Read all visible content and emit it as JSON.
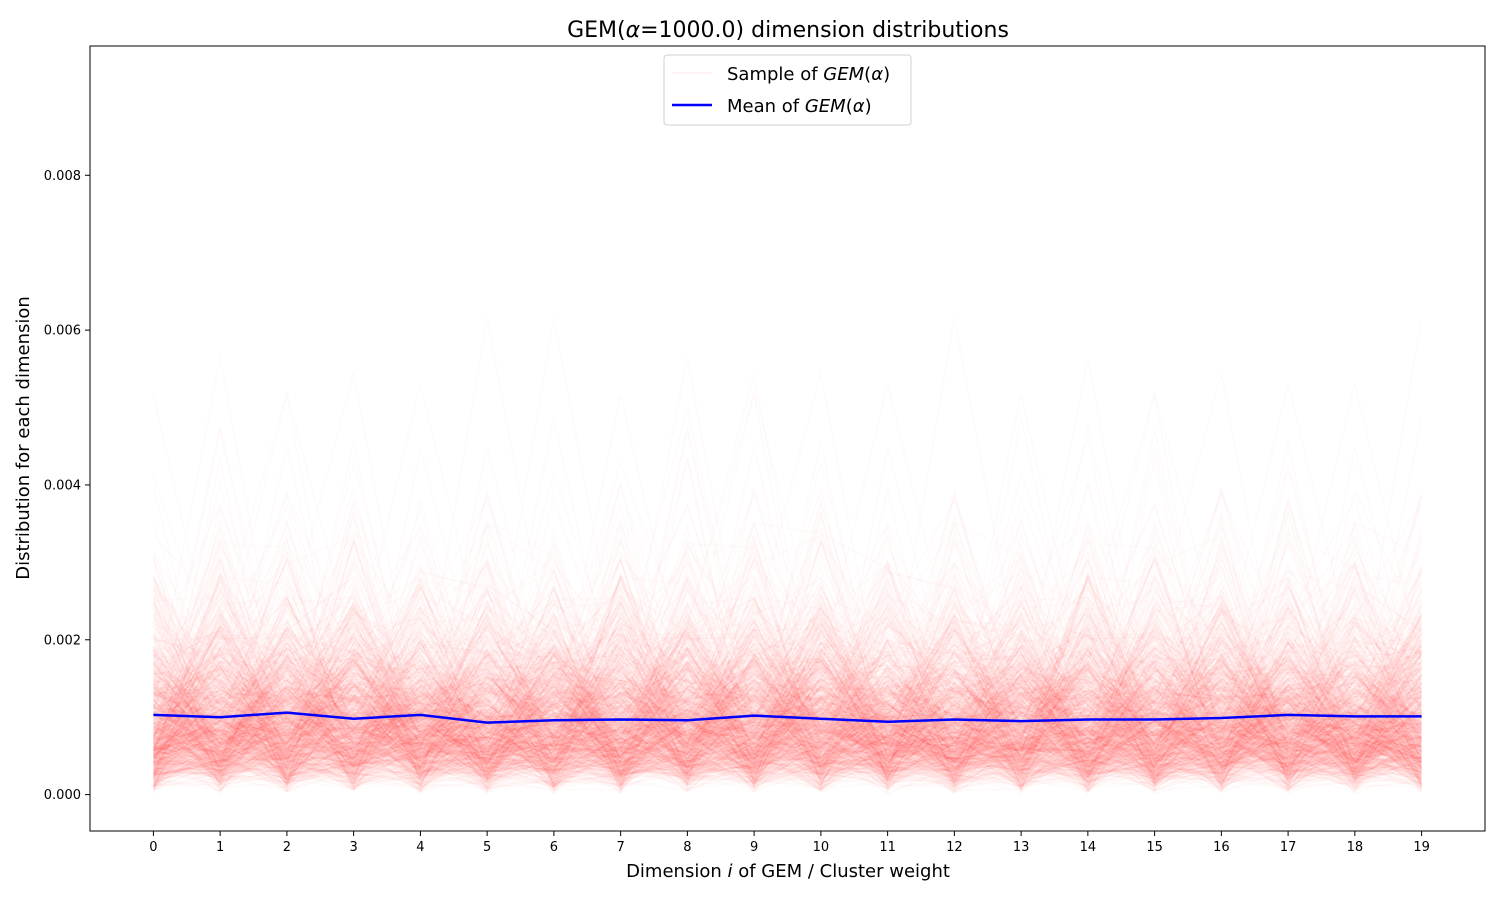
{
  "chart_data": {
    "type": "line",
    "title_parts": [
      "GEM(",
      "α",
      "=1000.0) dimension distributions"
    ],
    "xlabel_parts": [
      "Dimension ",
      "i",
      " of GEM / Cluster weight"
    ],
    "ylabel": "Distribution for each dimension",
    "x": [
      0,
      1,
      2,
      3,
      4,
      5,
      6,
      7,
      8,
      9,
      10,
      11,
      12,
      13,
      14,
      15,
      16,
      17,
      18,
      19
    ],
    "xlim": [
      -0.95,
      19.95
    ],
    "ylim": [
      -0.00047,
      0.00967
    ],
    "yticks": [
      0.0,
      0.002,
      0.004,
      0.006,
      0.008
    ],
    "ytick_labels": [
      "0.000",
      "0.002",
      "0.004",
      "0.006",
      "0.008"
    ],
    "grid": false,
    "legend_position": "top-center",
    "series": [
      {
        "name_parts": [
          "Sample of ",
          "GEM",
          "(",
          "α",
          ")"
        ],
        "role": "samples",
        "color": "#ff0000",
        "alpha": 0.018,
        "count": 1000,
        "mean": 0.001
      },
      {
        "name_parts": [
          "Mean of ",
          "GEM",
          "(",
          "α",
          ")"
        ],
        "role": "mean",
        "color": "#0000ff",
        "values": [
          0.00103,
          0.001,
          0.00106,
          0.00098,
          0.00103,
          0.00093,
          0.00096,
          0.00097,
          0.00096,
          0.00102,
          0.00098,
          0.00094,
          0.00097,
          0.00095,
          0.00097,
          0.00097,
          0.00099,
          0.00103,
          0.00101,
          0.00101
        ]
      }
    ]
  }
}
